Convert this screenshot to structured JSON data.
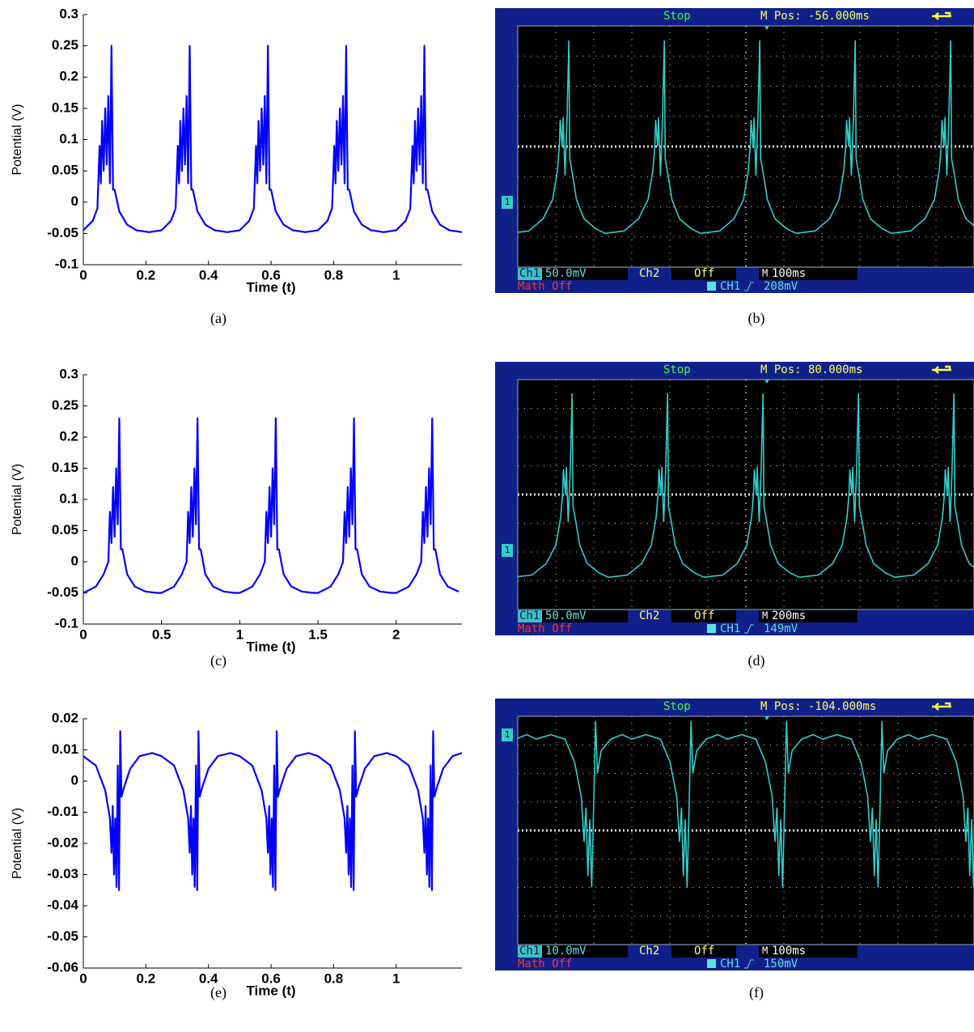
{
  "chart_data": [
    {
      "type": "line",
      "caption": "(a)",
      "x_label": "Time (t)",
      "y_label": "Potential (V)",
      "xlim": [
        0,
        1.21
      ],
      "xticks": [
        0,
        0.2,
        0.4,
        0.6,
        0.8,
        1
      ],
      "ylim": [
        -0.1,
        0.3
      ],
      "yticks": [
        -0.1,
        -0.05,
        0,
        0.05,
        0.1,
        0.15,
        0.2,
        0.25,
        0.3
      ],
      "x": [
        0,
        0.03,
        0.045,
        0.052,
        0.056,
        0.06,
        0.065,
        0.07,
        0.075,
        0.08,
        0.085,
        0.09,
        0.095,
        0.1,
        0.115,
        0.14,
        0.17,
        0.21,
        0.25,
        0.28,
        0.295,
        0.302,
        0.306,
        0.31,
        0.315,
        0.32,
        0.325,
        0.33,
        0.335,
        0.34,
        0.345,
        0.35,
        0.365,
        0.39,
        0.42,
        0.46,
        0.5,
        0.53,
        0.545,
        0.552,
        0.556,
        0.56,
        0.565,
        0.57,
        0.575,
        0.58,
        0.585,
        0.59,
        0.595,
        0.6,
        0.615,
        0.64,
        0.67,
        0.71,
        0.75,
        0.78,
        0.795,
        0.802,
        0.806,
        0.81,
        0.815,
        0.82,
        0.825,
        0.83,
        0.835,
        0.84,
        0.845,
        0.85,
        0.865,
        0.89,
        0.92,
        0.96,
        1,
        1.03,
        1.045,
        1.052,
        1.056,
        1.06,
        1.065,
        1.07,
        1.075,
        1.08,
        1.085,
        1.09,
        1.095,
        1.1,
        1.115,
        1.14,
        1.17,
        1.21
      ],
      "series": [
        {
          "color": "#0000ff",
          "values": [
            -0.045,
            -0.03,
            -0.01,
            0.09,
            0.03,
            0.13,
            0.05,
            0.15,
            0.06,
            0.17,
            0.03,
            0.25,
            0.02,
            0.02,
            -0.015,
            -0.036,
            -0.045,
            -0.048,
            -0.045,
            -0.03,
            -0.01,
            0.09,
            0.03,
            0.13,
            0.05,
            0.15,
            0.06,
            0.17,
            0.03,
            0.25,
            0.02,
            0.02,
            -0.015,
            -0.036,
            -0.045,
            -0.048,
            -0.045,
            -0.03,
            -0.01,
            0.09,
            0.03,
            0.13,
            0.05,
            0.15,
            0.06,
            0.17,
            0.03,
            0.25,
            0.02,
            0.02,
            -0.015,
            -0.036,
            -0.045,
            -0.048,
            -0.045,
            -0.03,
            -0.01,
            0.09,
            0.03,
            0.13,
            0.05,
            0.15,
            0.06,
            0.17,
            0.03,
            0.25,
            0.02,
            0.02,
            -0.015,
            -0.036,
            -0.045,
            -0.048,
            -0.045,
            -0.03,
            -0.01,
            0.09,
            0.03,
            0.13,
            0.05,
            0.15,
            0.06,
            0.17,
            0.03,
            0.25,
            0.02,
            0.02,
            -0.015,
            -0.036,
            -0.045,
            -0.048
          ]
        }
      ]
    },
    {
      "type": "line",
      "caption": "(c)",
      "x_label": "Time (t)",
      "y_label": "Potential (V)",
      "xlim": [
        0,
        2.42
      ],
      "xticks": [
        0,
        0.5,
        1,
        1.5,
        2
      ],
      "ylim": [
        -0.1,
        0.3
      ],
      "yticks": [
        -0.1,
        -0.05,
        0,
        0.05,
        0.1,
        0.15,
        0.2,
        0.25,
        0.3
      ],
      "x": [
        0,
        0.08,
        0.13,
        0.16,
        0.17,
        0.18,
        0.19,
        0.2,
        0.21,
        0.22,
        0.23,
        0.24,
        0.25,
        0.28,
        0.33,
        0.4,
        0.47,
        0.5,
        0.58,
        0.63,
        0.66,
        0.67,
        0.68,
        0.69,
        0.7,
        0.71,
        0.72,
        0.73,
        0.74,
        0.75,
        0.78,
        0.83,
        0.9,
        0.97,
        1,
        1.08,
        1.13,
        1.16,
        1.17,
        1.18,
        1.19,
        1.2,
        1.21,
        1.22,
        1.23,
        1.24,
        1.25,
        1.28,
        1.33,
        1.4,
        1.47,
        1.5,
        1.58,
        1.63,
        1.66,
        1.67,
        1.68,
        1.69,
        1.7,
        1.71,
        1.72,
        1.73,
        1.74,
        1.75,
        1.78,
        1.83,
        1.9,
        1.97,
        2,
        2.08,
        2.13,
        2.16,
        2.17,
        2.18,
        2.19,
        2.2,
        2.21,
        2.22,
        2.23,
        2.24,
        2.25,
        2.28,
        2.33,
        2.4
      ],
      "series": [
        {
          "color": "#0000ff",
          "values": [
            -0.05,
            -0.04,
            -0.02,
            0,
            0.08,
            0.03,
            0.12,
            0.04,
            0.15,
            0.06,
            0.23,
            0.02,
            0.02,
            -0.02,
            -0.04,
            -0.048,
            -0.05,
            -0.05,
            -0.04,
            -0.02,
            0,
            0.08,
            0.03,
            0.12,
            0.04,
            0.15,
            0.06,
            0.23,
            0.02,
            0.02,
            -0.02,
            -0.04,
            -0.048,
            -0.05,
            -0.05,
            -0.04,
            -0.02,
            0,
            0.08,
            0.03,
            0.12,
            0.04,
            0.15,
            0.06,
            0.23,
            0.02,
            0.02,
            -0.02,
            -0.04,
            -0.048,
            -0.05,
            -0.05,
            -0.04,
            -0.02,
            0,
            0.08,
            0.03,
            0.12,
            0.04,
            0.15,
            0.06,
            0.23,
            0.02,
            0.02,
            -0.02,
            -0.04,
            -0.048,
            -0.05,
            -0.05,
            -0.04,
            -0.02,
            0,
            0.08,
            0.03,
            0.12,
            0.04,
            0.15,
            0.06,
            0.23,
            0.02,
            0.02,
            -0.02,
            -0.04,
            -0.048
          ]
        }
      ]
    },
    {
      "type": "line",
      "caption": "(e)",
      "x_label": "Time (t)",
      "y_label": "Potential (V)",
      "xlim": [
        0,
        1.21
      ],
      "xticks": [
        0,
        0.2,
        0.4,
        0.6,
        0.8,
        1
      ],
      "ylim": [
        -0.06,
        0.02
      ],
      "yticks": [
        -0.06,
        -0.05,
        -0.04,
        -0.03,
        -0.02,
        -0.01,
        0,
        0.01,
        0.02
      ],
      "x": [
        0,
        0.04,
        0.07,
        0.085,
        0.09,
        0.094,
        0.098,
        0.102,
        0.106,
        0.11,
        0.114,
        0.118,
        0.122,
        0.13,
        0.15,
        0.18,
        0.22,
        0.25,
        0.29,
        0.32,
        0.335,
        0.34,
        0.344,
        0.348,
        0.352,
        0.356,
        0.36,
        0.364,
        0.368,
        0.372,
        0.38,
        0.4,
        0.43,
        0.47,
        0.5,
        0.54,
        0.57,
        0.585,
        0.59,
        0.594,
        0.598,
        0.602,
        0.606,
        0.61,
        0.614,
        0.618,
        0.622,
        0.63,
        0.65,
        0.68,
        0.72,
        0.75,
        0.79,
        0.82,
        0.835,
        0.84,
        0.844,
        0.848,
        0.852,
        0.856,
        0.86,
        0.864,
        0.868,
        0.872,
        0.88,
        0.9,
        0.93,
        0.97,
        1,
        1.04,
        1.07,
        1.085,
        1.09,
        1.094,
        1.098,
        1.102,
        1.106,
        1.11,
        1.114,
        1.118,
        1.122,
        1.13,
        1.15,
        1.18,
        1.21
      ],
      "series": [
        {
          "color": "#0000ff",
          "values": [
            0.008,
            0.005,
            -0.003,
            -0.012,
            -0.023,
            -0.008,
            -0.03,
            -0.012,
            -0.034,
            0.005,
            -0.035,
            0.016,
            -0.005,
            -0.002,
            0.004,
            0.008,
            0.009,
            0.008,
            0.005,
            -0.003,
            -0.012,
            -0.023,
            -0.008,
            -0.03,
            -0.012,
            -0.034,
            0.005,
            -0.035,
            0.016,
            -0.005,
            -0.002,
            0.004,
            0.008,
            0.009,
            0.008,
            0.005,
            -0.003,
            -0.012,
            -0.023,
            -0.008,
            -0.03,
            -0.012,
            -0.034,
            0.005,
            -0.035,
            0.016,
            -0.005,
            -0.002,
            0.004,
            0.008,
            0.009,
            0.008,
            0.005,
            -0.003,
            -0.012,
            -0.023,
            -0.008,
            -0.03,
            -0.012,
            -0.034,
            0.005,
            -0.035,
            0.016,
            -0.005,
            -0.002,
            0.004,
            0.008,
            0.009,
            0.008,
            0.005,
            -0.003,
            -0.012,
            -0.023,
            -0.008,
            -0.03,
            -0.012,
            -0.034,
            0.005,
            -0.035,
            0.016,
            -0.005,
            -0.002,
            0.004,
            0.008,
            0.009
          ]
        }
      ]
    }
  ],
  "scope_panels": [
    {
      "caption": "(b)",
      "status": "Stop",
      "position": "M Pos: -56.000ms",
      "channel_marker": "1",
      "ch1": "Ch1",
      "ch1_scale": "50.0mV",
      "ch2": "Ch2",
      "ch2_state": "Off",
      "timebase_prefix": "M",
      "timebase": "100ms",
      "math": "Math Off",
      "trigger_source": "CH1",
      "trigger_level": "208mV"
    },
    {
      "caption": "(d)",
      "status": "Stop",
      "position": "M Pos: 80.000ms",
      "channel_marker": "1",
      "ch1": "Ch1",
      "ch1_scale": "50.0mV",
      "ch2": "Ch2",
      "ch2_state": "Off",
      "timebase_prefix": "M",
      "timebase": "200ms",
      "math": "Math Off",
      "trigger_source": "CH1",
      "trigger_level": "149mV"
    },
    {
      "caption": "(f)",
      "status": "Stop",
      "position": "M Pos: -104.000ms",
      "channel_marker": "1",
      "ch1": "Ch1",
      "ch1_scale": "10.0mV",
      "ch2": "Ch2",
      "ch2_state": "Off",
      "timebase_prefix": "M",
      "timebase": "100ms",
      "math": "Math Off",
      "trigger_source": "CH1",
      "trigger_level": "150mV"
    }
  ]
}
